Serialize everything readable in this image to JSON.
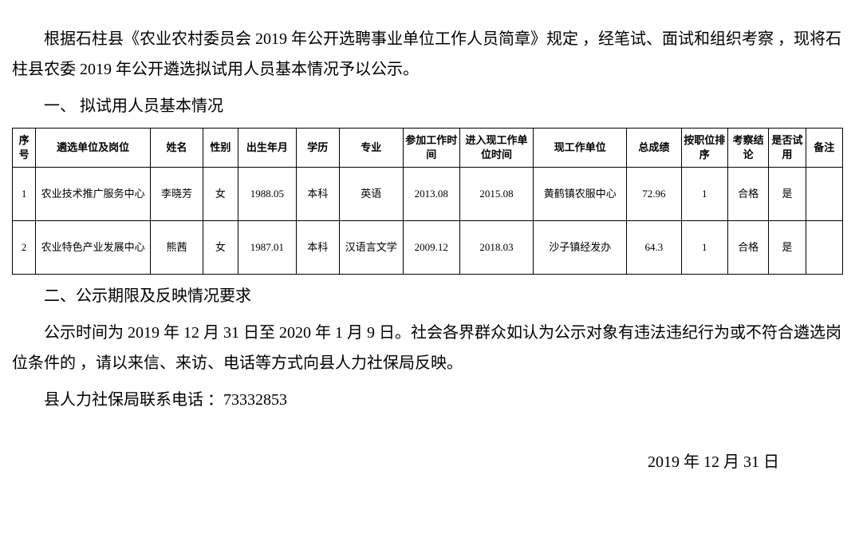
{
  "intro": "根据石柱县《农业农村委员会 2019 年公开选聘事业单位工作人员简章》规定 ，经笔试、面试和组织考察 ，现将石柱县农委 2019 年公开遴选拟试用人员基本情况予以公示。",
  "sec1": "一、 拟试用人员基本情况",
  "sec2": "二、公示期限及反映情况要求",
  "p2": "公示时间为 2019 年 12 月 31 日至 2020 年 1 月 9 日。社会各界群众如认为公示对象有违法违纪行为或不符合遴选岗位条件的 ，请以来信、来访、电话等方式向县人力社保局反映。",
  "p3": "县人力社保局联系电话 ：73332853",
  "date": "2019 年 12 月 31 日",
  "table": {
    "columns": [
      "序号",
      "遴选单位及岗位",
      "姓名",
      "性别",
      "出生年月",
      "学历",
      "专业",
      "参加工作时间",
      "进入现工作单位时间",
      "现工作单位",
      "总成绩",
      "按职位排序",
      "考察结论",
      "是否试用",
      "备注"
    ],
    "col_widths_class": [
      "c0",
      "c1",
      "c2",
      "c3",
      "c4",
      "c5",
      "c6",
      "c7",
      "c8",
      "c9",
      "c10",
      "c11",
      "c12",
      "c13",
      "c14"
    ],
    "rows": [
      [
        "1",
        "农业技术推广服务中心",
        "李晓芳",
        "女",
        "1988.05",
        "本科",
        "英语",
        "2013.08",
        "2015.08",
        "黄鹤镇农服中心",
        "72.96",
        "1",
        "合格",
        "是",
        ""
      ],
      [
        "2",
        "农业特色产业发展中心",
        "熊茜",
        "女",
        "1987.01",
        "本科",
        "汉语言文学",
        "2009.12",
        "2018.03",
        "沙子镇经发办",
        "64.3",
        "1",
        "合格",
        "是",
        ""
      ]
    ]
  }
}
